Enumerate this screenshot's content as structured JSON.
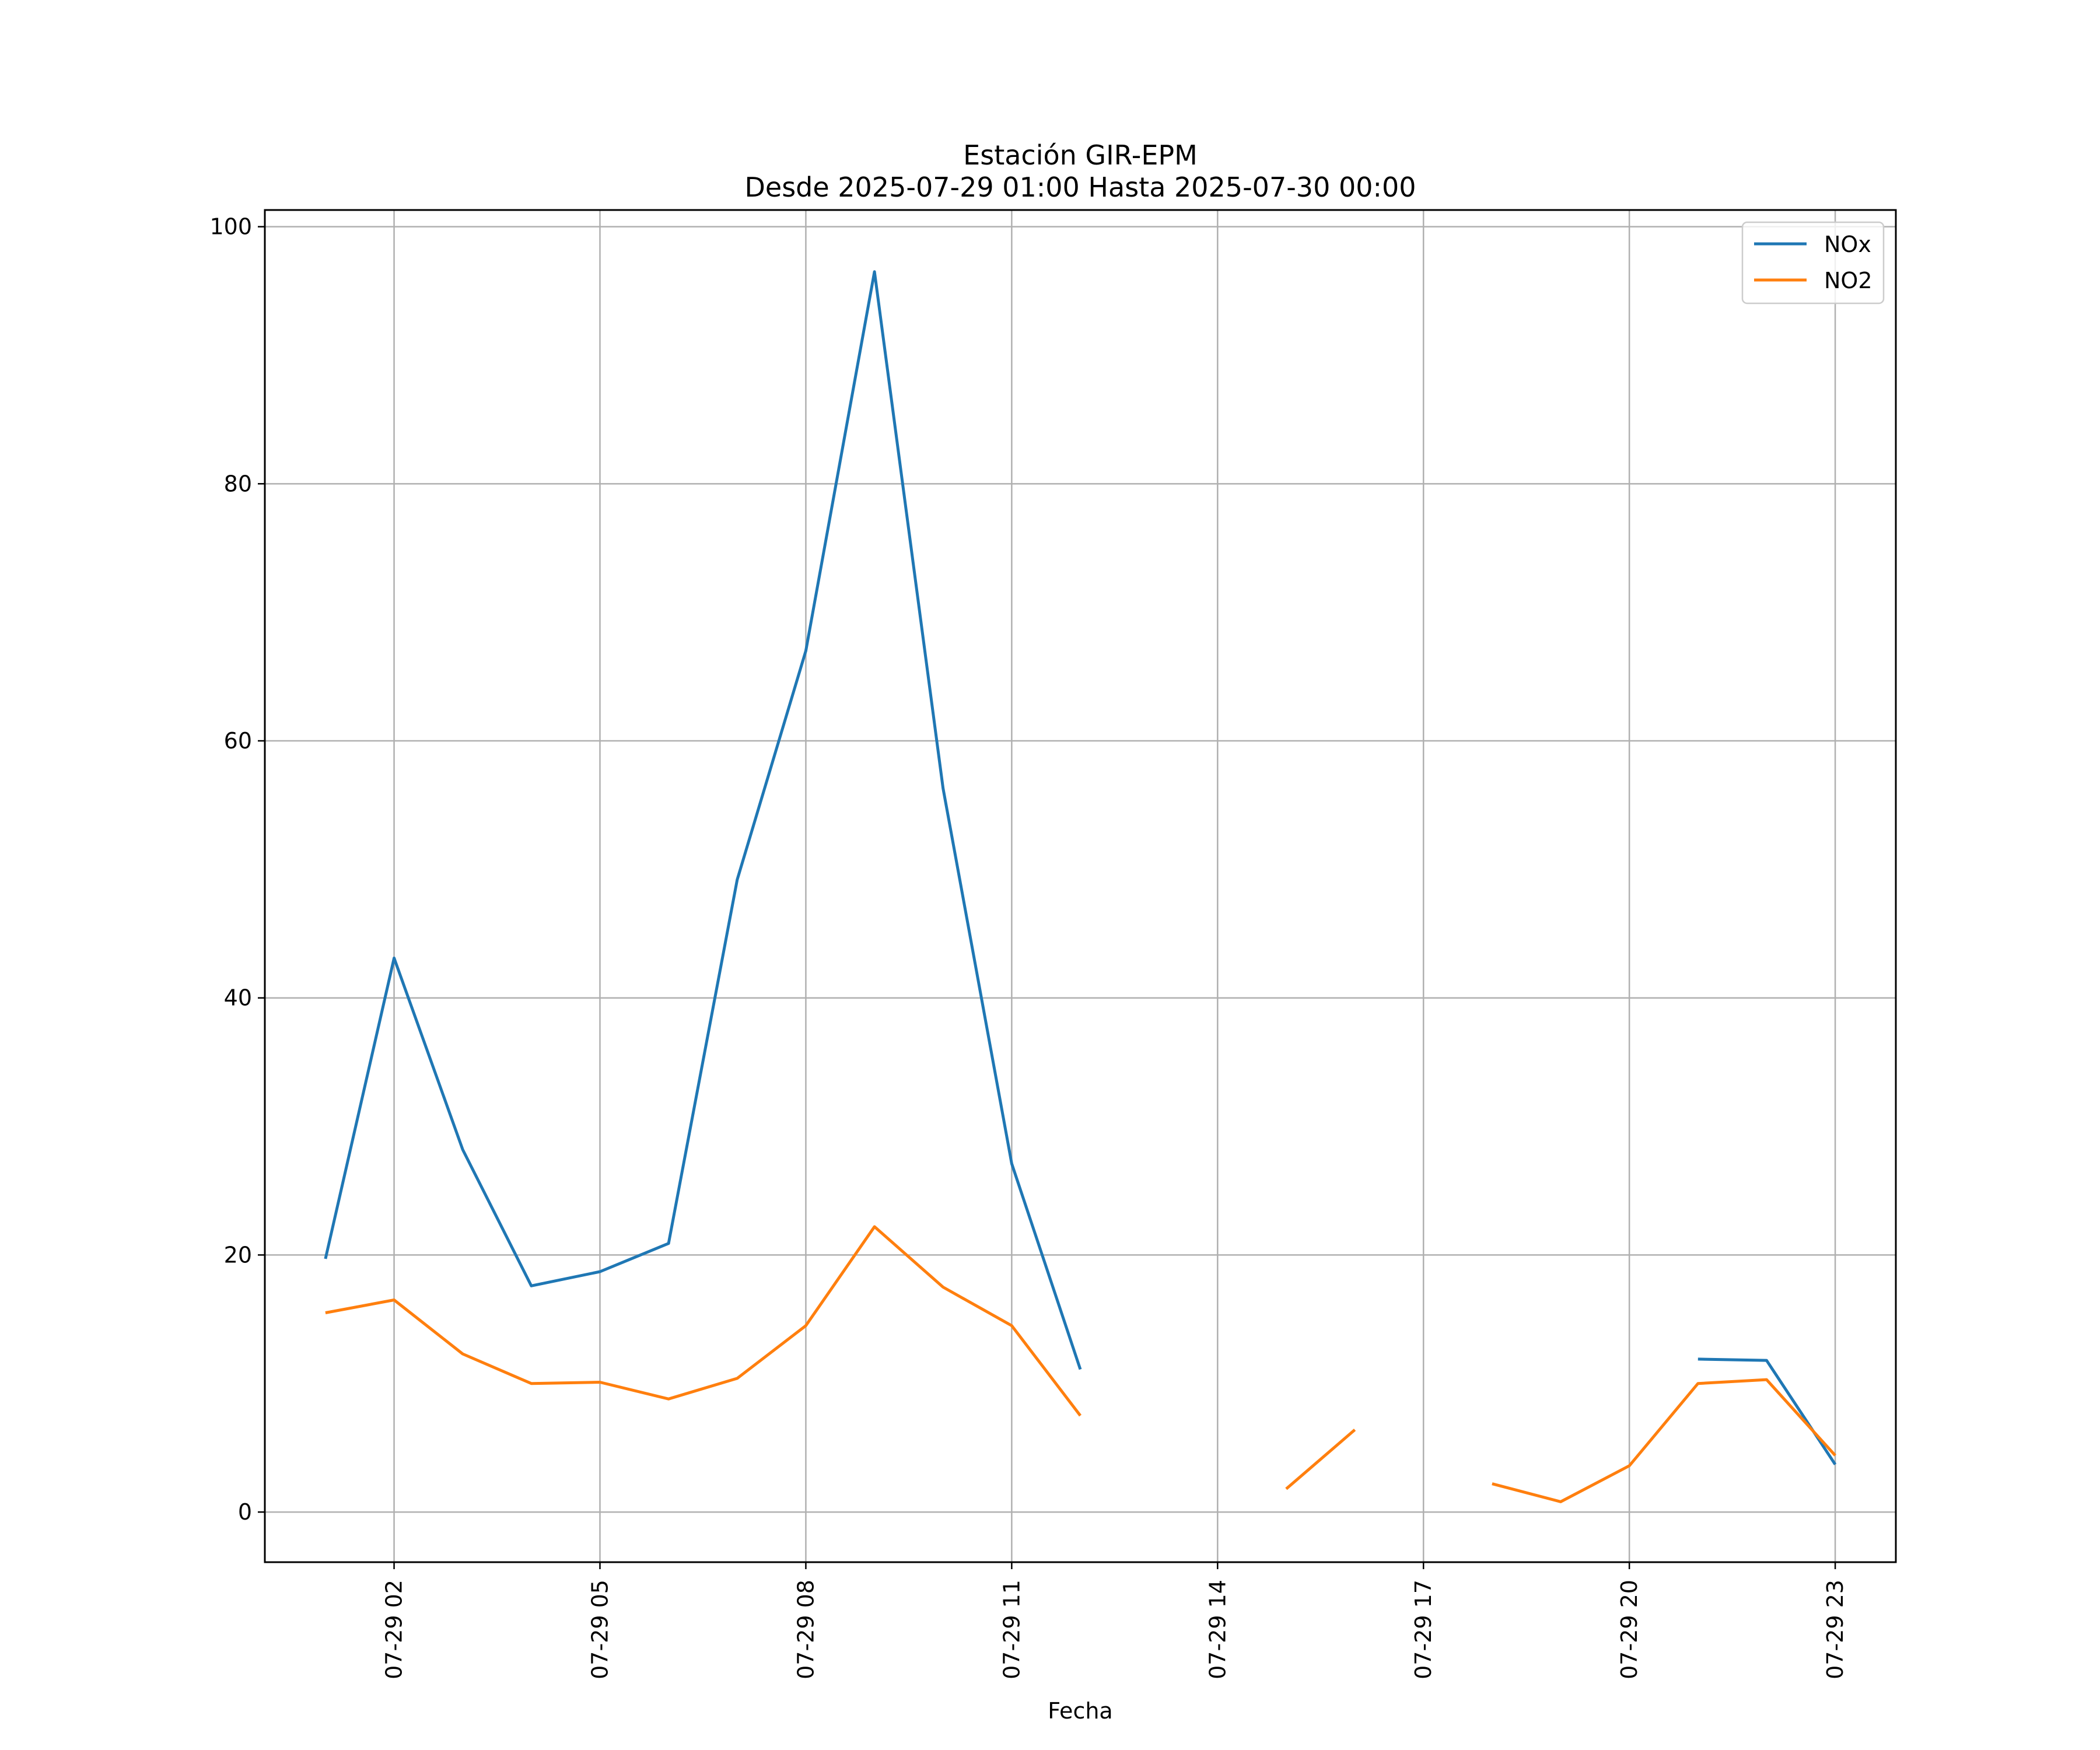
{
  "chart_data": {
    "type": "line",
    "title": "Estación GIR-EPM",
    "subtitle": "Desde 2025-07-29 01:00 Hasta 2025-07-30 00:00",
    "xlabel": "Fecha",
    "ylabel": "",
    "x": [
      "2025-07-29 01:00",
      "2025-07-29 02:00",
      "2025-07-29 03:00",
      "2025-07-29 04:00",
      "2025-07-29 05:00",
      "2025-07-29 06:00",
      "2025-07-29 07:00",
      "2025-07-29 08:00",
      "2025-07-29 09:00",
      "2025-07-29 10:00",
      "2025-07-29 11:00",
      "2025-07-29 12:00",
      "2025-07-29 13:00",
      "2025-07-29 14:00",
      "2025-07-29 15:00",
      "2025-07-29 16:00",
      "2025-07-29 17:00",
      "2025-07-29 18:00",
      "2025-07-29 19:00",
      "2025-07-29 20:00",
      "2025-07-29 21:00",
      "2025-07-29 22:00",
      "2025-07-29 23:00"
    ],
    "xlim": [
      "2025-07-29 00:07",
      "2025-07-29 23:53"
    ],
    "ylim": [
      -3.9,
      101.3
    ],
    "xticks": [
      "07-29 02",
      "07-29 05",
      "07-29 08",
      "07-29 11",
      "07-29 14",
      "07-29 17",
      "07-29 20",
      "07-29 23"
    ],
    "yticks": [
      "0",
      "20",
      "40",
      "60",
      "80",
      "100"
    ],
    "grid": true,
    "legend_position": "top-right",
    "series": [
      {
        "name": "NOx",
        "color": "#1f77b4",
        "values": [
          19.7,
          43.1,
          28.2,
          17.6,
          18.7,
          20.9,
          49.2,
          67.0,
          96.5,
          56.3,
          27.1,
          11.1,
          null,
          null,
          null,
          null,
          null,
          null,
          null,
          null,
          11.9,
          11.8,
          3.7
        ]
      },
      {
        "name": "NO2",
        "color": "#ff7f0e",
        "values": [
          15.5,
          16.5,
          12.3,
          10.0,
          10.1,
          8.8,
          10.4,
          14.5,
          22.2,
          17.5,
          14.5,
          7.5,
          null,
          null,
          1.8,
          6.4,
          null,
          2.2,
          0.8,
          3.6,
          10.0,
          10.3,
          4.4
        ]
      }
    ]
  }
}
